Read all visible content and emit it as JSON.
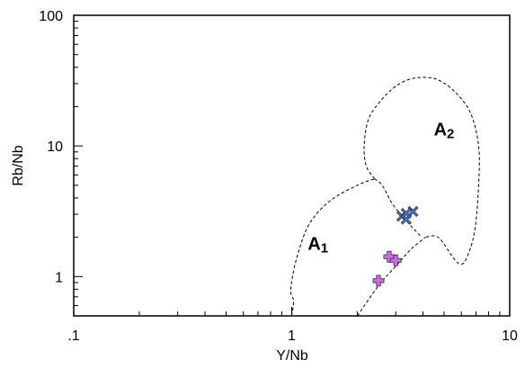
{
  "chart_data": {
    "type": "scatter",
    "title": "",
    "xlabel": "Y/Nb",
    "ylabel": "Rb/Nb",
    "xscale": "log",
    "yscale": "log",
    "xlim": [
      0.1,
      10
    ],
    "ylim": [
      0.5,
      100
    ],
    "grid": false,
    "x_tick_labels": [
      {
        "value": 0.1,
        "label": ".1"
      },
      {
        "value": 1,
        "label": "1"
      },
      {
        "value": 10,
        "label": "10"
      }
    ],
    "y_tick_labels": [
      {
        "value": 1,
        "label": "1"
      },
      {
        "value": 10,
        "label": "10"
      },
      {
        "value": 100,
        "label": "100"
      }
    ],
    "fields": [
      {
        "label": "A",
        "sub": "1",
        "label_at": [
          1.32,
          1.6
        ]
      },
      {
        "label": "A",
        "sub": "2",
        "label_at": [
          5.0,
          12.0
        ]
      }
    ],
    "boundaries": [
      {
        "points": [
          [
            1.0,
            0.5
          ],
          [
            1.02,
            0.65
          ],
          [
            0.99,
            0.8
          ],
          [
            1.05,
            1.35
          ],
          [
            1.2,
            2.5
          ],
          [
            1.5,
            3.8
          ],
          [
            2.0,
            5.0
          ],
          [
            2.4,
            5.6
          ]
        ]
      },
      {
        "points": [
          [
            2.4,
            5.6
          ],
          [
            2.6,
            5.0
          ],
          [
            2.9,
            3.6
          ],
          [
            3.4,
            2.6
          ],
          [
            3.9,
            2.05
          ]
        ]
      },
      {
        "points": [
          [
            2.0,
            0.5
          ],
          [
            2.5,
            0.85
          ],
          [
            3.0,
            1.2
          ],
          [
            3.5,
            1.6
          ],
          [
            4.1,
            2.0
          ]
        ]
      },
      {
        "points": [
          [
            2.4,
            5.6
          ],
          [
            2.2,
            7.0
          ],
          [
            2.15,
            10.0
          ],
          [
            2.25,
            16.0
          ],
          [
            2.55,
            22.0
          ],
          [
            2.95,
            28.0
          ],
          [
            3.4,
            32.0
          ],
          [
            4.0,
            33.5
          ],
          [
            4.7,
            32.0
          ],
          [
            5.6,
            26.0
          ],
          [
            6.6,
            18.0
          ],
          [
            7.2,
            10.0
          ],
          [
            7.2,
            5.0
          ],
          [
            6.9,
            2.2
          ],
          [
            6.3,
            1.35
          ],
          [
            5.9,
            1.25
          ],
          [
            5.5,
            1.4
          ],
          [
            4.7,
            2.0
          ],
          [
            4.1,
            2.0
          ]
        ]
      }
    ],
    "series": [
      {
        "marker": "cross-x",
        "color": "#3b7fe0",
        "x": [
          3.2,
          3.35,
          3.6,
          3.35
        ],
        "y": [
          2.9,
          2.75,
          3.15,
          3.05
        ]
      },
      {
        "marker": "plus",
        "color": "#d06ae8",
        "x": [
          2.5,
          2.8,
          3.0
        ],
        "y": [
          0.93,
          1.42,
          1.33
        ]
      }
    ]
  }
}
